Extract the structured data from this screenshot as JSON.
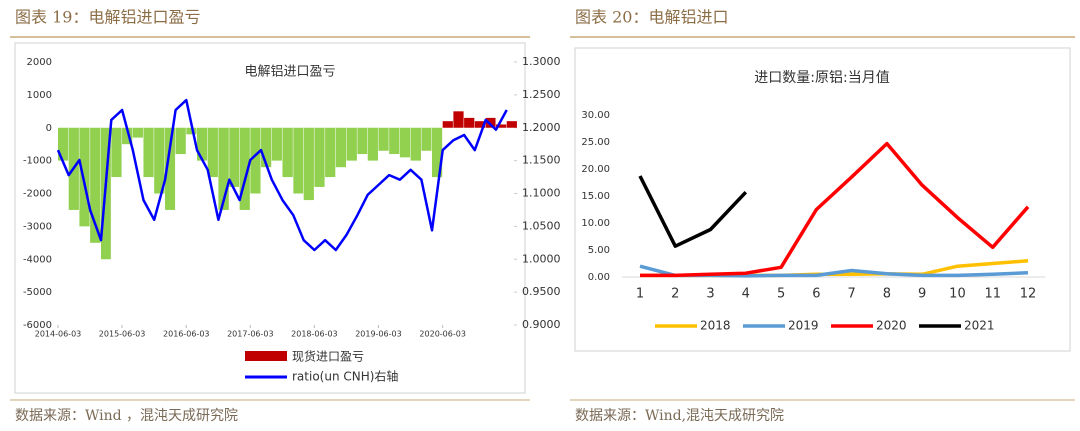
{
  "headers": [
    "图表 19：电解铝进口盈亏",
    "图表 20：电解铝进口"
  ],
  "sources": [
    "数据来源：Wind ，混沌天成研究院",
    "数据来源：Wind,混沌天成研究院"
  ],
  "chart_data": [
    {
      "type": "combo",
      "title": "电解铝进口盈亏",
      "x": [
        "2014-06-03",
        "2014-08-03",
        "2014-10-03",
        "2014-12-03",
        "2015-02-03",
        "2015-04-03",
        "2015-06-03",
        "2015-08-03",
        "2015-10-03",
        "2015-12-03",
        "2016-02-03",
        "2016-04-03",
        "2016-06-03",
        "2016-08-03",
        "2016-10-03",
        "2016-12-03",
        "2017-02-03",
        "2017-04-03",
        "2017-06-03",
        "2017-08-03",
        "2017-10-03",
        "2017-12-03",
        "2018-02-03",
        "2018-04-03",
        "2018-06-03",
        "2018-08-03",
        "2018-10-03",
        "2018-12-03",
        "2019-02-03",
        "2019-04-03",
        "2019-06-03",
        "2019-08-03",
        "2019-10-03",
        "2019-12-03",
        "2020-02-03",
        "2020-04-03",
        "2020-06-03",
        "2020-08-03",
        "2020-10-03",
        "2020-12-03",
        "2021-02-03",
        "2021-04-03",
        "2021-06-03"
      ],
      "series": [
        {
          "name": "现货进口盈亏",
          "type": "bar",
          "color": "#c00000",
          "negative_color": "#92d050",
          "values": [
            -1000,
            -2500,
            -3000,
            -3500,
            -4000,
            -1500,
            -500,
            -300,
            -1500,
            -2000,
            -2500,
            -800,
            -200,
            -1000,
            -1500,
            -2500,
            -1800,
            -2500,
            -2000,
            -1200,
            -1000,
            -1500,
            -2000,
            -2200,
            -1800,
            -1500,
            -1200,
            -1000,
            -800,
            -1000,
            -700,
            -800,
            -900,
            -1000,
            -700,
            -1500,
            200,
            500,
            300,
            200,
            300,
            100,
            200
          ]
        },
        {
          "name": "ratio(un CNH)右轴",
          "type": "line",
          "axis": "y2",
          "color": "#0000ff",
          "values": [
            1.166,
            1.128,
            1.151,
            1.075,
            1.029,
            1.212,
            1.227,
            1.166,
            1.09,
            1.06,
            1.121,
            1.227,
            1.242,
            1.166,
            1.136,
            1.06,
            1.121,
            1.09,
            1.151,
            1.166,
            1.121,
            1.09,
            1.067,
            1.029,
            1.014,
            1.029,
            1.014,
            1.037,
            1.067,
            1.098,
            1.113,
            1.128,
            1.121,
            1.136,
            1.121,
            1.044,
            1.166,
            1.181,
            1.189,
            1.166,
            1.212,
            1.197,
            1.227
          ]
        }
      ],
      "xlim": [
        "2014-06-03",
        "2021-07-03"
      ],
      "xticks": [
        "2014-06-03",
        "2015-06-03",
        "2016-06-03",
        "2017-06-03",
        "2018-06-03",
        "2019-06-03",
        "2020-06-03"
      ],
      "ylim": [
        -6000,
        2000
      ],
      "yticks": [
        -6000,
        -5000,
        -4000,
        -3000,
        -2000,
        -1000,
        0,
        1000,
        2000
      ],
      "y2lim": [
        0.9,
        1.3
      ],
      "y2ticks": [
        {
          "value": 0.9,
          "label": "0.9000"
        },
        {
          "value": 0.95,
          "label": "0.9500"
        },
        {
          "value": 1.0,
          "label": "1.0000"
        },
        {
          "value": 1.05,
          "label": "1.0500"
        },
        {
          "value": 1.1,
          "label": "1.1000"
        },
        {
          "value": 1.15,
          "label": "1.1500"
        },
        {
          "value": 1.2,
          "label": "1.2000"
        },
        {
          "value": 1.25,
          "label": "1.2500"
        },
        {
          "value": 1.3,
          "label": "1.3000"
        }
      ],
      "legend": "bottom"
    },
    {
      "type": "line",
      "title": "进口数量:原铝:当月值",
      "categories": [
        1,
        2,
        3,
        4,
        5,
        6,
        7,
        8,
        9,
        10,
        11,
        12
      ],
      "series": [
        {
          "name": "2018",
          "color": "#ffc000",
          "values": [
            0.3,
            0.3,
            0.3,
            0.3,
            0.3,
            0.5,
            0.5,
            0.6,
            0.5,
            2.0,
            2.5,
            3.0
          ]
        },
        {
          "name": "2019",
          "color": "#5b9bd5",
          "values": [
            2.0,
            0.3,
            0.3,
            0.2,
            0.3,
            0.3,
            1.2,
            0.6,
            0.3,
            0.3,
            0.5,
            0.8
          ]
        },
        {
          "name": "2020",
          "color": "#ff0000",
          "values": [
            0.3,
            0.3,
            0.5,
            0.7,
            1.8,
            12.5,
            18.5,
            24.7,
            17.0,
            11.0,
            5.5,
            13.0
          ]
        },
        {
          "name": "2021",
          "color": "#000000",
          "values": [
            18.7,
            5.7,
            8.8,
            15.7,
            null,
            null,
            null,
            null,
            null,
            null,
            null,
            null
          ]
        }
      ],
      "ylim": [
        0,
        30
      ],
      "yticks": [
        {
          "value": 0,
          "label": "0.00"
        },
        {
          "value": 5,
          "label": "5.00"
        },
        {
          "value": 10,
          "label": "10.00"
        },
        {
          "value": 15,
          "label": "15.00"
        },
        {
          "value": 20,
          "label": "20.00"
        },
        {
          "value": 25,
          "label": "25.00"
        },
        {
          "value": 30,
          "label": "30.00"
        }
      ],
      "legend": "bottom"
    }
  ]
}
